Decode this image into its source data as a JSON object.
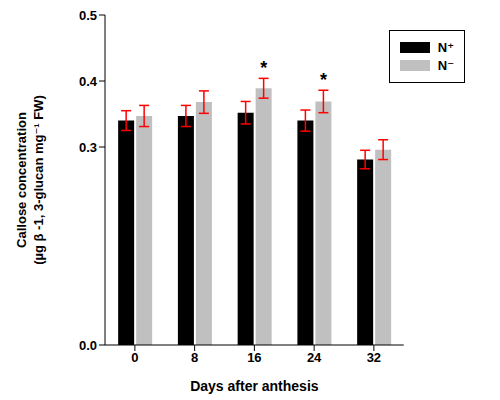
{
  "chart_data": {
    "type": "bar",
    "ylabel": "Callose concentration\n(µg β -1, 3-glucan mg⁻¹ FW)",
    "xlabel": "Days after anthesis",
    "categories": [
      "0",
      "8",
      "16",
      "24",
      "32"
    ],
    "series": [
      {
        "name": "N⁺",
        "color": "#000000",
        "values": [
          0.34,
          0.347,
          0.352,
          0.34,
          0.281
        ],
        "errors": [
          0.015,
          0.016,
          0.017,
          0.016,
          0.014
        ]
      },
      {
        "name": "N⁻",
        "color": "#c0c0c0",
        "values": [
          0.347,
          0.368,
          0.389,
          0.369,
          0.296
        ],
        "errors": [
          0.016,
          0.017,
          0.015,
          0.017,
          0.015
        ]
      }
    ],
    "ylim": [
      0,
      0.5
    ],
    "yticks": [
      {
        "value": 0,
        "label": "0.0"
      },
      0.3,
      0.4,
      0.5
    ],
    "legend": "upper right",
    "annotations": [
      {
        "category": "16",
        "series": "N⁻",
        "text": "*"
      },
      {
        "category": "24",
        "series": "N⁻",
        "text": "*"
      }
    ]
  }
}
